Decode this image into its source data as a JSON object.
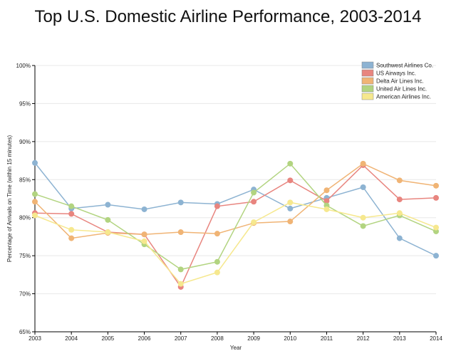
{
  "chart_data": {
    "type": "line",
    "title": "Top U.S. Domestic Airline Performance, 2003-2014",
    "xlabel": "Year",
    "ylabel": "Percentage of Arrivals on Time (within 15 minutes)",
    "x": [
      "2003",
      "2004",
      "2005",
      "2006",
      "2007",
      "2008",
      "2009",
      "2010",
      "2011",
      "2012",
      "2013",
      "2014"
    ],
    "ylim": [
      65,
      100
    ],
    "yticks": [
      {
        "value": 65,
        "label": "65%"
      },
      {
        "value": 70,
        "label": "70%"
      },
      {
        "value": 75,
        "label": "75%"
      },
      {
        "value": 80,
        "label": "80%"
      },
      {
        "value": 85,
        "label": "85%"
      },
      {
        "value": 90,
        "label": "90%"
      },
      {
        "value": 95,
        "label": "95%"
      },
      {
        "value": 100,
        "label": "100%"
      }
    ],
    "grid": true,
    "legend_position": "top-right",
    "series": [
      {
        "name": "Southwest Airlines Co.",
        "color": "#8db3d2",
        "values": [
          87.2,
          81.2,
          81.7,
          81.1,
          82.0,
          81.8,
          83.7,
          81.2,
          82.6,
          84.0,
          77.3,
          75.0
        ]
      },
      {
        "name": "US Airways Inc.",
        "color": "#e8857f",
        "values": [
          80.6,
          80.5,
          78.1,
          77.8,
          70.9,
          81.5,
          82.1,
          84.9,
          82.2,
          86.9,
          82.4,
          82.6
        ]
      },
      {
        "name": "Delta Air Lines Inc.",
        "color": "#f0b475",
        "values": [
          82.1,
          77.3,
          78.0,
          77.8,
          78.1,
          77.9,
          79.3,
          79.5,
          83.6,
          87.1,
          84.9,
          84.2
        ]
      },
      {
        "name": "United Air Lines Inc.",
        "color": "#b2d480",
        "values": [
          83.1,
          81.5,
          79.7,
          76.5,
          73.2,
          74.2,
          83.3,
          87.1,
          81.6,
          78.9,
          80.3,
          78.2
        ]
      },
      {
        "name": "American Airlines Inc.",
        "color": "#f6e88e",
        "values": [
          80.3,
          78.4,
          78.1,
          76.9,
          71.3,
          72.8,
          79.4,
          82.0,
          81.1,
          80.0,
          80.6,
          78.7
        ]
      }
    ]
  }
}
